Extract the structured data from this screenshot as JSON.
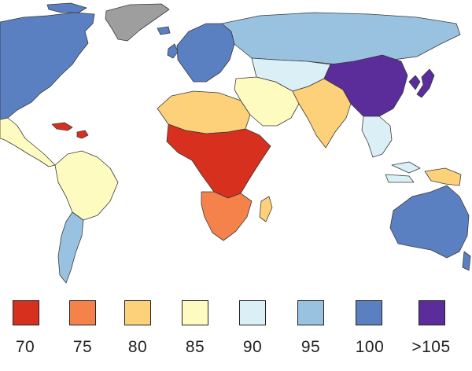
{
  "legend": {
    "items": [
      {
        "label": "70",
        "color": "#d7301f"
      },
      {
        "label": "75",
        "color": "#f4824a"
      },
      {
        "label": "80",
        "color": "#fdd17a"
      },
      {
        "label": "85",
        "color": "#fefbc0"
      },
      {
        "label": "90",
        "color": "#dbf0f6"
      },
      {
        "label": "95",
        "color": "#98c2e0"
      },
      {
        "label": "100",
        "color": "#5a80c2"
      },
      {
        "label": ">105",
        "color": "#5a2d9b"
      }
    ]
  },
  "no_data_color": "#9e9e9e",
  "ocean_color": "#ffffff",
  "regions": [
    {
      "name": "north-america",
      "value": "100"
    },
    {
      "name": "greenland",
      "value": "no-data"
    },
    {
      "name": "mexico-central-america",
      "value": "85"
    },
    {
      "name": "caribbean",
      "value": "70"
    },
    {
      "name": "south-america",
      "value": "85"
    },
    {
      "name": "southern-cone",
      "value": "95"
    },
    {
      "name": "europe",
      "value": "100"
    },
    {
      "name": "russia",
      "value": "95"
    },
    {
      "name": "north-africa",
      "value": "80"
    },
    {
      "name": "sub-saharan-africa",
      "value": "70"
    },
    {
      "name": "southern-africa",
      "value": "75"
    },
    {
      "name": "middle-east",
      "value": "85"
    },
    {
      "name": "india",
      "value": "80"
    },
    {
      "name": "central-asia",
      "value": "90"
    },
    {
      "name": "china",
      "value": ">105"
    },
    {
      "name": "japan-korea",
      "value": ">105"
    },
    {
      "name": "southeast-asia",
      "value": "90"
    },
    {
      "name": "australia",
      "value": "100"
    },
    {
      "name": "new-guinea",
      "value": "80"
    }
  ]
}
